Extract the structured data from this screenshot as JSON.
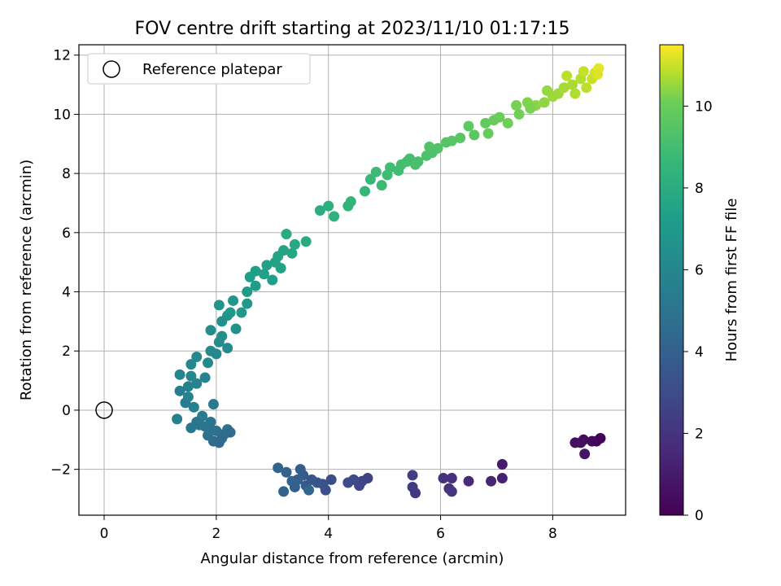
{
  "chart_data": {
    "type": "scatter",
    "title": "FOV centre drift starting at 2023/11/10 01:17:15",
    "xlabel": "Angular distance from reference (arcmin)",
    "ylabel": "Rotation from reference (arcmin)",
    "xlim": [
      -0.45,
      9.3
    ],
    "ylim": [
      -3.55,
      12.35
    ],
    "xticks": [
      0,
      2,
      4,
      6,
      8
    ],
    "yticks": [
      -2,
      0,
      2,
      4,
      6,
      8,
      10,
      12
    ],
    "grid": true,
    "legend": {
      "position": "top-left",
      "entries": [
        "Reference platepar"
      ]
    },
    "reference_point": {
      "x": 0,
      "y": 0
    },
    "colorbar": {
      "label": "Hours from first FF file",
      "range": [
        0,
        11.5
      ],
      "ticks": [
        0,
        2,
        4,
        6,
        8,
        10
      ],
      "colormap": "viridis"
    },
    "series": [
      {
        "points": [
          [
            8.85,
            -0.95,
            0.1
          ],
          [
            8.78,
            -1.05,
            0.2
          ],
          [
            8.7,
            -1.05,
            0.3
          ],
          [
            8.55,
            -1.0,
            0.4
          ],
          [
            8.5,
            -1.1,
            0.5
          ],
          [
            8.4,
            -1.1,
            0.6
          ],
          [
            8.57,
            -1.48,
            0.7
          ],
          [
            7.1,
            -1.83,
            1.0
          ],
          [
            7.1,
            -2.3,
            1.2
          ],
          [
            6.9,
            -2.4,
            1.4
          ],
          [
            6.5,
            -2.4,
            1.6
          ],
          [
            6.2,
            -2.3,
            1.8
          ],
          [
            6.05,
            -2.3,
            1.9
          ],
          [
            6.15,
            -2.65,
            2.0
          ],
          [
            6.2,
            -2.75,
            2.1
          ],
          [
            5.55,
            -2.8,
            2.2
          ],
          [
            5.5,
            -2.6,
            2.3
          ],
          [
            5.5,
            -2.2,
            2.4
          ],
          [
            4.7,
            -2.3,
            2.6
          ],
          [
            4.6,
            -2.4,
            2.7
          ],
          [
            4.55,
            -2.55,
            2.8
          ],
          [
            4.45,
            -2.35,
            2.9
          ],
          [
            4.35,
            -2.45,
            3.0
          ],
          [
            4.05,
            -2.35,
            3.1
          ],
          [
            3.95,
            -2.7,
            3.2
          ],
          [
            3.9,
            -2.5,
            3.3
          ],
          [
            3.8,
            -2.45,
            3.4
          ],
          [
            3.7,
            -2.35,
            3.5
          ],
          [
            3.6,
            -2.55,
            3.6
          ],
          [
            3.55,
            -2.2,
            3.7
          ],
          [
            3.5,
            -2.0,
            3.8
          ],
          [
            3.45,
            -2.35,
            3.9
          ],
          [
            3.4,
            -2.6,
            4.0
          ],
          [
            3.35,
            -2.4,
            4.05
          ],
          [
            3.25,
            -2.1,
            4.1
          ],
          [
            3.2,
            -2.75,
            4.15
          ],
          [
            3.1,
            -1.95,
            4.2
          ],
          [
            3.65,
            -2.7,
            4.25
          ],
          [
            2.15,
            -0.8,
            4.4
          ],
          [
            2.05,
            -1.1,
            4.5
          ],
          [
            1.95,
            -1.05,
            4.6
          ],
          [
            2.0,
            -0.7,
            4.7
          ],
          [
            2.2,
            -0.65,
            4.8
          ],
          [
            1.9,
            -0.4,
            4.9
          ],
          [
            1.8,
            -0.55,
            5.0
          ],
          [
            1.7,
            -0.5,
            5.1
          ],
          [
            1.55,
            -0.6,
            5.2
          ],
          [
            1.95,
            0.2,
            5.3
          ],
          [
            1.45,
            0.25,
            5.4
          ],
          [
            1.35,
            0.65,
            5.5
          ],
          [
            1.3,
            -0.3,
            5.6
          ],
          [
            1.5,
            0.8,
            5.7
          ],
          [
            1.65,
            0.9,
            5.8
          ],
          [
            1.8,
            1.1,
            5.85
          ],
          [
            1.35,
            1.2,
            5.9
          ],
          [
            1.55,
            1.55,
            6.0
          ],
          [
            1.65,
            1.8,
            6.1
          ],
          [
            1.9,
            2.0,
            6.2
          ],
          [
            2.05,
            2.3,
            6.3
          ],
          [
            1.9,
            2.7,
            6.4
          ],
          [
            2.1,
            3.0,
            6.5
          ],
          [
            2.2,
            3.2,
            6.6
          ],
          [
            2.05,
            3.55,
            6.7
          ],
          [
            2.3,
            3.7,
            6.8
          ],
          [
            2.45,
            3.3,
            6.9
          ],
          [
            2.55,
            3.6,
            7.0
          ],
          [
            2.55,
            4.0,
            7.1
          ],
          [
            2.7,
            4.2,
            7.2
          ],
          [
            2.7,
            4.7,
            7.3
          ],
          [
            2.9,
            4.9,
            7.4
          ],
          [
            3.15,
            4.8,
            7.5
          ],
          [
            3.1,
            5.2,
            7.6
          ],
          [
            3.35,
            5.3,
            7.7
          ],
          [
            3.4,
            5.6,
            7.8
          ],
          [
            3.6,
            5.7,
            7.9
          ],
          [
            3.25,
            5.95,
            8.0
          ],
          [
            3.85,
            6.75,
            8.1
          ],
          [
            4.0,
            6.9,
            8.2
          ],
          [
            4.1,
            6.55,
            8.3
          ],
          [
            4.35,
            6.9,
            8.4
          ],
          [
            4.4,
            7.05,
            8.5
          ],
          [
            4.65,
            7.4,
            8.6
          ],
          [
            4.75,
            7.8,
            8.7
          ],
          [
            4.95,
            7.6,
            8.8
          ],
          [
            5.1,
            8.2,
            8.9
          ],
          [
            5.3,
            8.3,
            9.0
          ],
          [
            5.45,
            8.5,
            9.1
          ],
          [
            5.55,
            8.3,
            9.2
          ],
          [
            5.75,
            8.6,
            9.3
          ],
          [
            5.8,
            8.9,
            9.4
          ],
          [
            6.1,
            9.05,
            9.5
          ],
          [
            6.35,
            9.2,
            9.6
          ],
          [
            6.5,
            9.6,
            9.7
          ],
          [
            6.8,
            9.7,
            9.8
          ],
          [
            6.85,
            9.35,
            9.9
          ],
          [
            7.05,
            9.9,
            10.0
          ],
          [
            7.2,
            9.7,
            10.1
          ],
          [
            7.35,
            10.3,
            10.2
          ],
          [
            7.55,
            10.4,
            10.3
          ],
          [
            7.7,
            10.3,
            10.4
          ],
          [
            7.9,
            10.8,
            10.5
          ],
          [
            8.1,
            10.7,
            10.6
          ],
          [
            8.35,
            11.0,
            10.7
          ],
          [
            8.5,
            11.2,
            10.8
          ],
          [
            8.6,
            10.9,
            10.9
          ],
          [
            8.75,
            11.4,
            11.1
          ],
          [
            8.82,
            11.55,
            11.3
          ],
          [
            2.25,
            3.3,
            6.85
          ],
          [
            2.35,
            2.75,
            6.55
          ],
          [
            2.1,
            2.5,
            6.45
          ],
          [
            2.2,
            2.1,
            6.25
          ],
          [
            2.0,
            1.9,
            6.15
          ],
          [
            1.85,
            1.6,
            6.05
          ],
          [
            1.55,
            1.15,
            5.95
          ],
          [
            1.5,
            0.45,
            5.75
          ],
          [
            1.6,
            0.1,
            5.65
          ],
          [
            1.75,
            -0.2,
            5.45
          ],
          [
            2.1,
            -0.95,
            4.55
          ],
          [
            2.25,
            -0.75,
            4.45
          ],
          [
            1.85,
            -0.85,
            4.85
          ],
          [
            1.65,
            -0.4,
            5.05
          ],
          [
            1.9,
            -0.65,
            4.95
          ],
          [
            2.6,
            4.5,
            7.25
          ],
          [
            2.85,
            4.6,
            7.35
          ],
          [
            3.0,
            4.4,
            7.3
          ],
          [
            3.05,
            5.0,
            7.45
          ],
          [
            3.2,
            5.4,
            7.55
          ],
          [
            4.85,
            8.05,
            8.85
          ],
          [
            5.05,
            7.95,
            8.92
          ],
          [
            5.25,
            8.1,
            8.95
          ],
          [
            5.4,
            8.4,
            9.05
          ],
          [
            5.6,
            8.4,
            9.15
          ],
          [
            5.85,
            8.7,
            9.25
          ],
          [
            5.95,
            8.85,
            9.35
          ],
          [
            6.2,
            9.1,
            9.55
          ],
          [
            6.6,
            9.3,
            9.65
          ],
          [
            6.95,
            9.8,
            9.95
          ],
          [
            7.4,
            10.0,
            10.15
          ],
          [
            7.6,
            10.2,
            10.25
          ],
          [
            7.85,
            10.4,
            10.45
          ],
          [
            8.0,
            10.6,
            10.55
          ],
          [
            8.2,
            10.9,
            10.65
          ],
          [
            8.4,
            10.7,
            10.75
          ],
          [
            8.7,
            11.2,
            11.0
          ],
          [
            8.55,
            11.45,
            10.95
          ],
          [
            8.8,
            11.35,
            11.2
          ],
          [
            8.25,
            11.3,
            10.85
          ]
        ]
      }
    ]
  }
}
